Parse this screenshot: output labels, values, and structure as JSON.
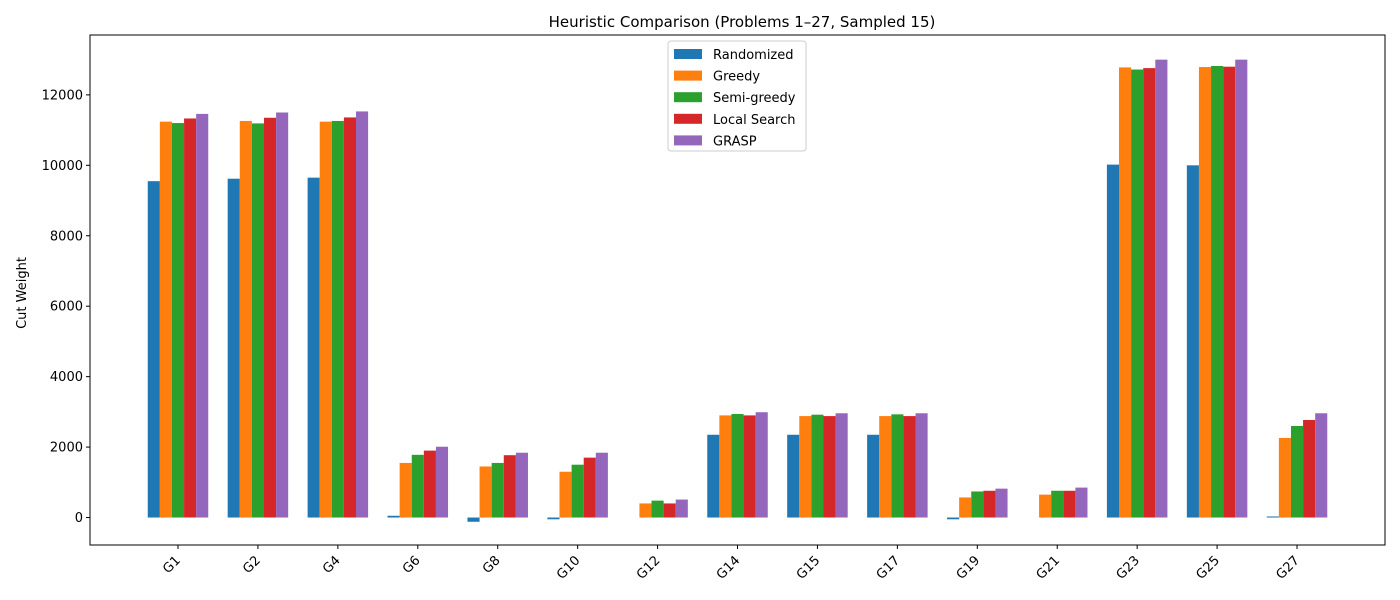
{
  "chart_data": {
    "type": "bar",
    "title": "Heuristic Comparison (Problems 1–27, Sampled 15)",
    "xlabel": "",
    "ylabel": "Cut Weight",
    "ylim": [
      -780,
      13700
    ],
    "yticks": [
      0,
      2000,
      4000,
      6000,
      8000,
      10000,
      12000
    ],
    "grid": false,
    "legend_position": "top-center",
    "categories": [
      "G1",
      "G2",
      "G4",
      "G6",
      "G8",
      "G10",
      "G12",
      "G14",
      "G15",
      "G17",
      "G19",
      "G21",
      "G23",
      "G25",
      "G27"
    ],
    "series": [
      {
        "name": "Randomized",
        "color": "#1f77b4",
        "values": [
          9550,
          9620,
          9650,
          50,
          -120,
          -50,
          0,
          2350,
          2350,
          2350,
          -50,
          0,
          10020,
          10000,
          30
        ]
      },
      {
        "name": "Greedy",
        "color": "#ff7f0e",
        "values": [
          11240,
          11260,
          11240,
          1550,
          1450,
          1300,
          400,
          2900,
          2880,
          2880,
          570,
          650,
          12780,
          12790,
          2260
        ]
      },
      {
        "name": "Semi-greedy",
        "color": "#2ca02c",
        "values": [
          11200,
          11190,
          11260,
          1780,
          1550,
          1500,
          480,
          2940,
          2920,
          2930,
          740,
          760,
          12720,
          12820,
          2600
        ]
      },
      {
        "name": "Local Search",
        "color": "#d62728",
        "values": [
          11330,
          11350,
          11360,
          1900,
          1770,
          1700,
          400,
          2900,
          2880,
          2880,
          760,
          760,
          12760,
          12800,
          2770
        ]
      },
      {
        "name": "GRASP",
        "color": "#9467bd",
        "values": [
          11460,
          11500,
          11530,
          2010,
          1840,
          1840,
          510,
          2990,
          2960,
          2960,
          820,
          850,
          13000,
          13000,
          2960
        ]
      }
    ]
  }
}
